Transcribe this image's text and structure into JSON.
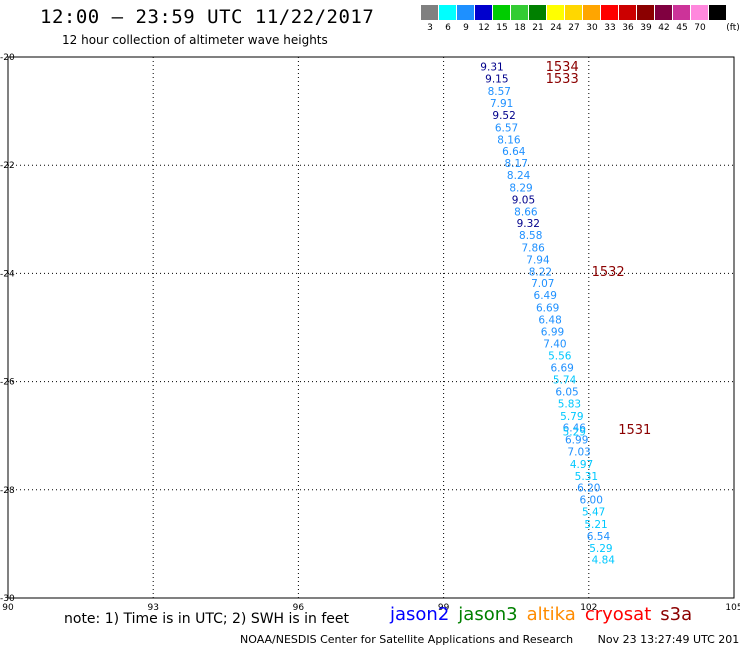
{
  "header": {
    "title": "12:00 – 23:59 UTC 11/22/2017",
    "subtitle": "12 hour collection of altimeter wave heights"
  },
  "legend": {
    "unit": "(ft)",
    "bins": [
      {
        "label": "3",
        "color": "#808080"
      },
      {
        "label": "6",
        "color": "#00ffff"
      },
      {
        "label": "9",
        "color": "#1e90ff"
      },
      {
        "label": "12",
        "color": "#0000cd"
      },
      {
        "label": "15",
        "color": "#00cc00"
      },
      {
        "label": "18",
        "color": "#33cc33"
      },
      {
        "label": "21",
        "color": "#008000"
      },
      {
        "label": "24",
        "color": "#ffff00"
      },
      {
        "label": "27",
        "color": "#ffd700"
      },
      {
        "label": "30",
        "color": "#ffa500"
      },
      {
        "label": "33",
        "color": "#ff0000"
      },
      {
        "label": "36",
        "color": "#cc0000"
      },
      {
        "label": "39",
        "color": "#8b0000"
      },
      {
        "label": "42",
        "color": "#800040"
      },
      {
        "label": "45",
        "color": "#cc3399"
      },
      {
        "label": "70",
        "color": "#ff88dd"
      },
      {
        "label": "",
        "color": "#000000"
      }
    ]
  },
  "chart_data": {
    "type": "scatter",
    "xlim": [
      90,
      105
    ],
    "ylim": [
      -30,
      -20
    ],
    "x_ticks": [
      "90",
      "93",
      "96",
      "99",
      "102",
      "105"
    ],
    "y_ticks": [
      "-20",
      "-22",
      "-24",
      "-26",
      "-28",
      "-30"
    ],
    "grid": "dotted",
    "colors": {
      "dark_blue": "#00008b",
      "blue": "#1e90ff",
      "cyan": "#00c8ff",
      "pass": "#8b0000"
    },
    "points": [
      {
        "lon": 100.0,
        "lat": -20.19,
        "label": "9.31",
        "color": "dark_blue"
      },
      {
        "lon": 100.1,
        "lat": -20.42,
        "label": "9.15",
        "color": "dark_blue"
      },
      {
        "lon": 100.15,
        "lat": -20.65,
        "label": "8.57",
        "color": "blue"
      },
      {
        "lon": 100.2,
        "lat": -20.87,
        "label": "7.91",
        "color": "blue"
      },
      {
        "lon": 100.25,
        "lat": -21.09,
        "label": "9.52",
        "color": "dark_blue"
      },
      {
        "lon": 100.3,
        "lat": -21.32,
        "label": "6.57",
        "color": "blue"
      },
      {
        "lon": 100.35,
        "lat": -21.54,
        "label": "8.16",
        "color": "blue"
      },
      {
        "lon": 100.45,
        "lat": -21.76,
        "label": "6.64",
        "color": "blue"
      },
      {
        "lon": 100.5,
        "lat": -21.98,
        "label": "8.17",
        "color": "blue"
      },
      {
        "lon": 100.55,
        "lat": -22.2,
        "label": "8.24",
        "color": "blue"
      },
      {
        "lon": 100.6,
        "lat": -22.43,
        "label": "8.29",
        "color": "blue"
      },
      {
        "lon": 100.65,
        "lat": -22.65,
        "label": "9.05",
        "color": "dark_blue"
      },
      {
        "lon": 100.7,
        "lat": -22.87,
        "label": "8.66",
        "color": "blue"
      },
      {
        "lon": 100.75,
        "lat": -23.09,
        "label": "9.32",
        "color": "dark_blue"
      },
      {
        "lon": 100.8,
        "lat": -23.31,
        "label": "8.58",
        "color": "blue"
      },
      {
        "lon": 100.85,
        "lat": -23.54,
        "label": "7.86",
        "color": "blue"
      },
      {
        "lon": 100.95,
        "lat": -23.76,
        "label": "7.94",
        "color": "blue"
      },
      {
        "lon": 101.0,
        "lat": -23.98,
        "label": "8.22",
        "color": "blue"
      },
      {
        "lon": 101.05,
        "lat": -24.2,
        "label": "7.07",
        "color": "blue"
      },
      {
        "lon": 101.1,
        "lat": -24.42,
        "label": "6.49",
        "color": "blue"
      },
      {
        "lon": 101.15,
        "lat": -24.65,
        "label": "6.69",
        "color": "blue"
      },
      {
        "lon": 101.2,
        "lat": -24.87,
        "label": "6.48",
        "color": "blue"
      },
      {
        "lon": 101.25,
        "lat": -25.09,
        "label": "6.99",
        "color": "blue"
      },
      {
        "lon": 101.3,
        "lat": -25.31,
        "label": "7.40",
        "color": "blue"
      },
      {
        "lon": 101.4,
        "lat": -25.54,
        "label": "5.56",
        "color": "cyan"
      },
      {
        "lon": 101.45,
        "lat": -25.76,
        "label": "6.69",
        "color": "blue"
      },
      {
        "lon": 101.5,
        "lat": -25.98,
        "label": "5.74",
        "color": "cyan"
      },
      {
        "lon": 101.55,
        "lat": -26.2,
        "label": "6.05",
        "color": "blue"
      },
      {
        "lon": 101.6,
        "lat": -26.42,
        "label": "5.83",
        "color": "cyan"
      },
      {
        "lon": 101.65,
        "lat": -26.65,
        "label": "5.79",
        "color": "cyan"
      },
      {
        "lon": 101.7,
        "lat": -26.87,
        "label": "6.46",
        "color": "blue"
      },
      {
        "lon": 101.7,
        "lat": -26.94,
        "label": "5.29",
        "color": "cyan"
      },
      {
        "lon": 101.75,
        "lat": -27.09,
        "label": "6.99",
        "color": "blue"
      },
      {
        "lon": 101.8,
        "lat": -27.31,
        "label": "7.03",
        "color": "blue"
      },
      {
        "lon": 101.85,
        "lat": -27.54,
        "label": "4.97",
        "color": "cyan"
      },
      {
        "lon": 101.95,
        "lat": -27.76,
        "label": "5.31",
        "color": "cyan"
      },
      {
        "lon": 102.0,
        "lat": -27.98,
        "label": "6.20",
        "color": "blue"
      },
      {
        "lon": 102.05,
        "lat": -28.2,
        "label": "6.00",
        "color": "blue"
      },
      {
        "lon": 102.1,
        "lat": -28.42,
        "label": "5.47",
        "color": "cyan"
      },
      {
        "lon": 102.15,
        "lat": -28.65,
        "label": "5.21",
        "color": "cyan"
      },
      {
        "lon": 102.2,
        "lat": -28.87,
        "label": "6.54",
        "color": "blue"
      },
      {
        "lon": 102.25,
        "lat": -29.09,
        "label": "5.29",
        "color": "cyan"
      },
      {
        "lon": 102.3,
        "lat": -29.31,
        "label": "4.84",
        "color": "cyan"
      }
    ],
    "passes": [
      {
        "lon": 101.45,
        "lat": -20.19,
        "label": "1534"
      },
      {
        "lon": 101.45,
        "lat": -20.42,
        "label": "1533"
      },
      {
        "lon": 102.4,
        "lat": -23.98,
        "label": "1532"
      },
      {
        "lon": 102.95,
        "lat": -26.9,
        "label": "1531"
      }
    ]
  },
  "notes": {
    "text": "note: 1) Time is in UTC; 2) SWH is in feet"
  },
  "satellites": [
    {
      "name": "jason2",
      "color": "#0000ff"
    },
    {
      "name": "jason3",
      "color": "#008000"
    },
    {
      "name": "altika",
      "color": "#ff8c00"
    },
    {
      "name": "cryosat",
      "color": "#ff0000"
    },
    {
      "name": "s3a",
      "color": "#8b0000"
    }
  ],
  "footer": {
    "credit": "NOAA/NESDIS Center for Satellite Applications and Research",
    "timestamp": "Nov 23 13:27:49 UTC 2017"
  }
}
